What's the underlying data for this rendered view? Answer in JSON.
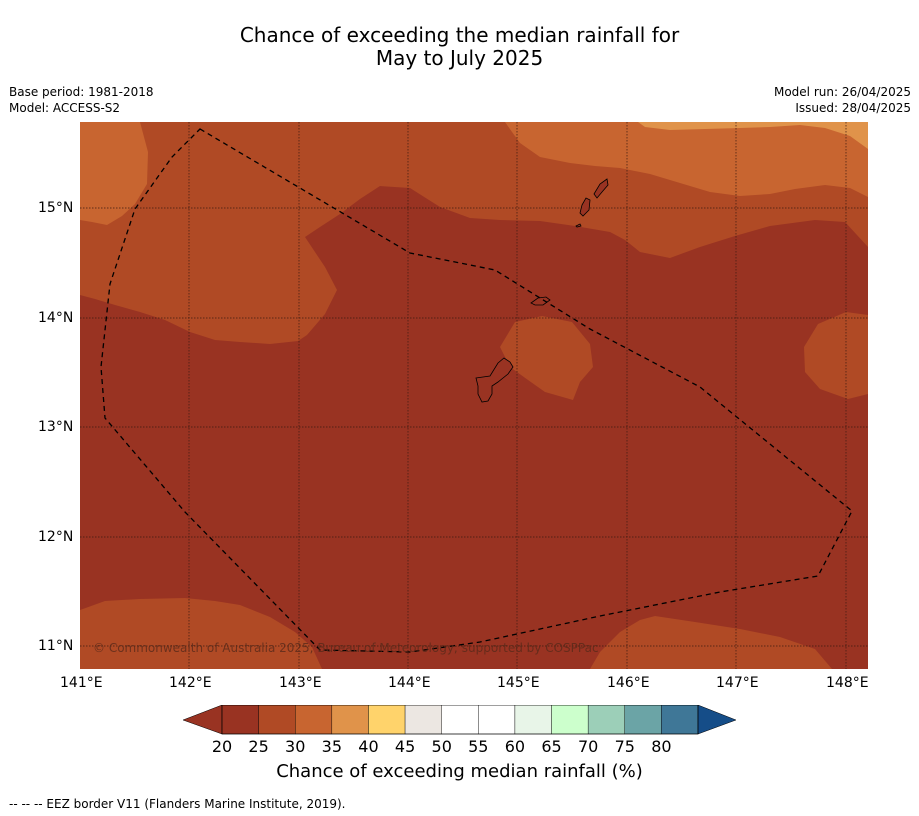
{
  "title_line1": "Chance of exceeding the median rainfall for",
  "title_line2": "May to July 2025",
  "meta_left": {
    "base_period": "Base period: 1981-2018",
    "model": "Model: ACCESS-S2"
  },
  "meta_right": {
    "model_run": "Model run: 26/04/2025",
    "issued": "Issued: 28/04/2025"
  },
  "lat_labels": [
    "15°N",
    "14°N",
    "13°N",
    "12°N",
    "11°N"
  ],
  "lon_labels": [
    "141°E",
    "142°E",
    "143°E",
    "144°E",
    "145°E",
    "146°E",
    "147°E",
    "148°E"
  ],
  "copyright": "© Commonwealth of Australia 2025, Bureau of Meteorology; supported by COSPPac",
  "legend": {
    "title": "Chance of exceeding median rainfall (%)",
    "ticks": [
      "20",
      "25",
      "30",
      "35",
      "40",
      "45",
      "50",
      "55",
      "60",
      "65",
      "70",
      "75",
      "80"
    ],
    "colors": [
      "#993322",
      "#b04a25",
      "#c86530",
      "#e0934a",
      "#ffd36b",
      "#ece7e2",
      "#ffffff",
      "#ffffff",
      "#e8f5e8",
      "#ccffcc",
      "#9ccfb8",
      "#6ba4a6",
      "#3f7797"
    ],
    "under_color": "#993322",
    "over_color": "#154d88"
  },
  "footnote": "--  --  -- EEZ border V11 (Flanders Marine Institute, 2019)."
}
